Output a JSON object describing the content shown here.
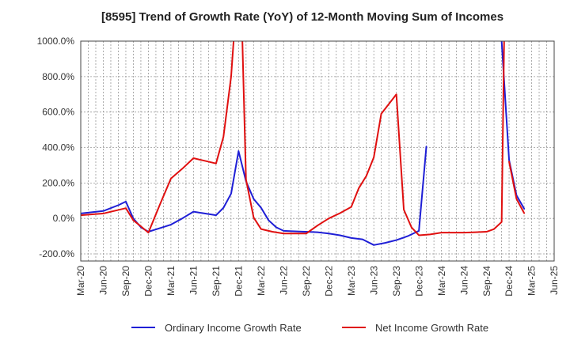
{
  "chart_data": {
    "type": "line",
    "title": "[8595]  Trend of Growth Rate (YoY) of 12-Month Moving Sum of Incomes",
    "xlabel": "",
    "ylabel": "",
    "categories": [
      "Mar-20",
      "Jun-20",
      "Sep-20",
      "Dec-20",
      "Mar-21",
      "Jun-21",
      "Sep-21",
      "Dec-21",
      "Mar-22",
      "Jun-22",
      "Sep-22",
      "Dec-22",
      "Mar-23",
      "Jun-23",
      "Sep-23",
      "Dec-23",
      "Mar-24",
      "Jun-24",
      "Sep-24",
      "Dec-24",
      "Mar-25",
      "Jun-25"
    ],
    "ylim": [
      -240,
      1000
    ],
    "yticks": [
      -200,
      0,
      200,
      400,
      600,
      800,
      1000
    ],
    "ytick_labels": [
      "-200.0%",
      "0.0%",
      "200.0%",
      "400.0%",
      "600.0%",
      "800.0%",
      "1000.0%"
    ],
    "grid": true,
    "legend_position": "bottom",
    "series": [
      {
        "name": "Ordinary Income Growth Rate",
        "color": "#1f1fd6",
        "points": [
          [
            0,
            28
          ],
          [
            1,
            42
          ],
          [
            1.67,
            75
          ],
          [
            2,
            95
          ],
          [
            2.33,
            0
          ],
          [
            2.67,
            -50
          ],
          [
            3,
            -75
          ],
          [
            3.5,
            -55
          ],
          [
            4,
            -35
          ],
          [
            4.5,
            0
          ],
          [
            5,
            38
          ],
          [
            5.5,
            28
          ],
          [
            6,
            18
          ],
          [
            6.33,
            60
          ],
          [
            6.67,
            140
          ],
          [
            7,
            380
          ],
          [
            7.33,
            210
          ],
          [
            7.67,
            110
          ],
          [
            8,
            60
          ],
          [
            8.33,
            -10
          ],
          [
            8.67,
            -50
          ],
          [
            9,
            -70
          ],
          [
            9.5,
            -73
          ],
          [
            10,
            -75
          ],
          [
            10.5,
            -78
          ],
          [
            11,
            -85
          ],
          [
            11.5,
            -95
          ],
          [
            12,
            -110
          ],
          [
            12.5,
            -118
          ],
          [
            13,
            -150
          ],
          [
            13.5,
            -138
          ],
          [
            14,
            -122
          ],
          [
            14.5,
            -100
          ],
          [
            15,
            -70
          ],
          [
            15.33,
            405
          ],
          null,
          [
            18.67,
            1000
          ],
          [
            19,
            330
          ],
          [
            19.33,
            130
          ],
          [
            19.67,
            55
          ]
        ]
      },
      {
        "name": "Net Income Growth Rate",
        "color": "#e01010",
        "points": [
          [
            0,
            18
          ],
          [
            1,
            28
          ],
          [
            1.67,
            48
          ],
          [
            2,
            58
          ],
          [
            2.33,
            -10
          ],
          [
            2.67,
            -45
          ],
          [
            3,
            -80
          ],
          [
            3.5,
            75
          ],
          [
            4,
            225
          ],
          [
            4.5,
            280
          ],
          [
            5,
            340
          ],
          [
            5.5,
            325
          ],
          [
            6,
            310
          ],
          [
            6.33,
            460
          ],
          [
            6.67,
            800
          ],
          [
            6.78,
            1000
          ],
          null,
          [
            7.17,
            1000
          ],
          [
            7.33,
            220
          ],
          [
            7.67,
            5
          ],
          [
            8,
            -60
          ],
          [
            8.5,
            -75
          ],
          [
            9,
            -85
          ],
          [
            9.5,
            -85
          ],
          [
            10,
            -85
          ],
          [
            10.5,
            -40
          ],
          [
            11,
            0
          ],
          [
            11.5,
            30
          ],
          [
            12,
            65
          ],
          [
            12.33,
            170
          ],
          [
            12.67,
            240
          ],
          [
            13,
            345
          ],
          [
            13.33,
            590
          ],
          [
            14,
            700
          ],
          [
            14.33,
            50
          ],
          [
            14.67,
            -50
          ],
          [
            15,
            -95
          ],
          [
            15.5,
            -90
          ],
          [
            16,
            -80
          ],
          [
            16.5,
            -80
          ],
          [
            17,
            -80
          ],
          [
            17.5,
            -78
          ],
          [
            18,
            -75
          ],
          [
            18.33,
            -60
          ],
          [
            18.67,
            -20
          ],
          [
            18.78,
            1000
          ],
          null,
          [
            19,
            320
          ],
          [
            19.33,
            110
          ],
          [
            19.67,
            30
          ]
        ]
      }
    ]
  }
}
